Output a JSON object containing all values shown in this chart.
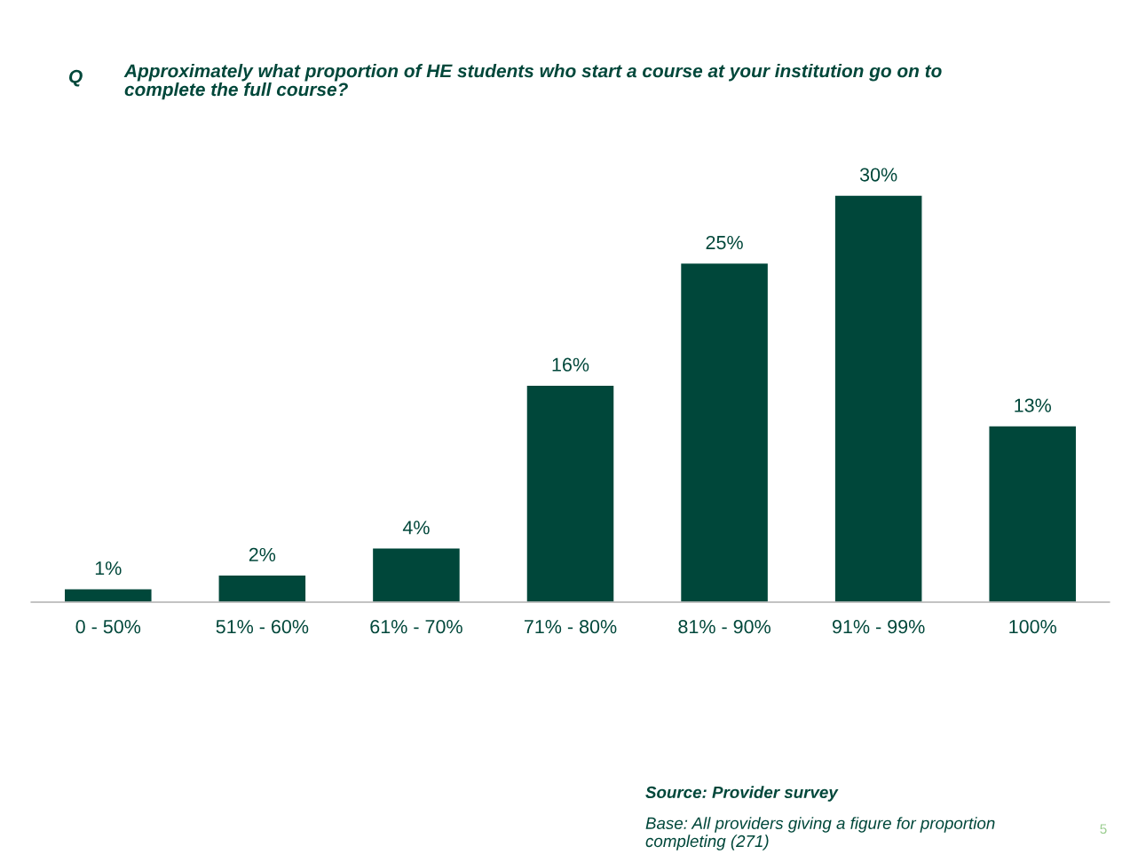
{
  "chart_data": {
    "type": "bar",
    "title": "Approximately what proportion of HE students who start a course at your institution go on to complete the full course?",
    "categories": [
      "0 - 50%",
      "51% - 60%",
      "61% - 70%",
      "71% - 80%",
      "81% - 90%",
      "91% - 99%",
      "100%"
    ],
    "values": [
      1,
      2,
      4,
      16,
      25,
      30,
      13
    ],
    "value_labels": [
      "1%",
      "2%",
      "4%",
      "16%",
      "25%",
      "30%",
      "13%"
    ],
    "color": "#00473a",
    "grid": false,
    "annotations": [
      "Q",
      "Source: Provider survey",
      "Base: All providers giving a figure for proportion completing (271)",
      "5"
    ]
  }
}
